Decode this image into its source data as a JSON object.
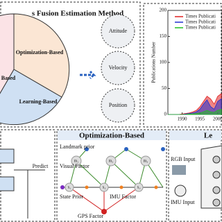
{
  "left_panel": {
    "title": "s Fusion Estimation Method",
    "sectors": [
      "Optimization-Based",
      "Based",
      "Learning-Based"
    ],
    "outputs": [
      "Attitude",
      "Velocity",
      "Position"
    ]
  },
  "chart_data": {
    "type": "area",
    "ylabel": "Publications Number",
    "x": [
      1986,
      1987,
      1988,
      1989,
      1990,
      1991,
      1992,
      1993,
      1994,
      1995,
      1996,
      1997,
      1998,
      1999,
      2000,
      2001
    ],
    "series": [
      {
        "name": "Times Publicati",
        "color": "#e02020",
        "values": [
          0,
          0,
          0,
          0,
          1,
          2,
          3,
          5,
          8,
          15,
          25,
          35,
          30,
          20,
          35,
          40
        ]
      },
      {
        "name": "Times Publicati",
        "color": "#2030d0",
        "values": [
          0,
          0,
          0,
          0,
          0,
          1,
          2,
          3,
          5,
          10,
          20,
          28,
          15,
          10,
          25,
          30
        ]
      },
      {
        "name": "Times Publicati",
        "color": "#20c020",
        "values": [
          0,
          0,
          0,
          0,
          0,
          0,
          1,
          1,
          2,
          3,
          5,
          8,
          5,
          4,
          8,
          10
        ]
      }
    ],
    "xlim": [
      1986,
      2001.2
    ],
    "xticks": [
      1990,
      1995,
      2000
    ],
    "ylim": [
      0,
      200
    ],
    "yticks": [
      0,
      50,
      100,
      150,
      200
    ]
  },
  "bottom_left": {
    "label": "Predict"
  },
  "optimization_panel": {
    "title": "Optimization-Based",
    "labels": [
      "Landmark prior",
      "Visual Factor",
      "State Prior",
      "IMU Factor",
      "GPS Factor"
    ],
    "node_labels": [
      "m₁",
      "m₂",
      "m₃",
      "x₁",
      "x₂",
      "x₃"
    ]
  },
  "learning_panel": {
    "title": "Le",
    "labels": [
      "RGB Input",
      "IMU Input"
    ]
  }
}
